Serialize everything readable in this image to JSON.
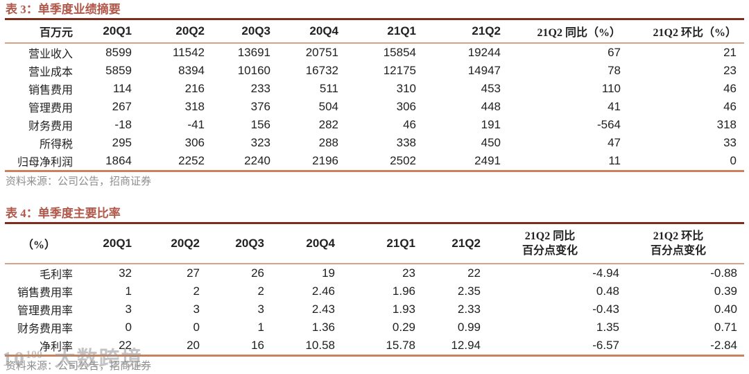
{
  "colors": {
    "title_red": "#b2584a",
    "dark_rule": "#7c2d1c",
    "header_rule": "#d9a184",
    "bottom_rule": "#c9815c",
    "source_gray": "#8e8e8e",
    "watermark_gray": "#919191"
  },
  "table3": {
    "title": "表 3：单季度业绩摘要",
    "columns": [
      "百万元",
      "20Q1",
      "20Q2",
      "20Q3",
      "20Q4",
      "21Q1",
      "21Q2",
      "21Q2 同比（%）",
      "21Q2 环比（%）"
    ],
    "rows": [
      {
        "label": "营业收入",
        "values": [
          "8599",
          "11542",
          "13691",
          "20751",
          "15854",
          "19244",
          "67",
          "21"
        ]
      },
      {
        "label": "营业成本",
        "values": [
          "5859",
          "8394",
          "10160",
          "16732",
          "12175",
          "14947",
          "78",
          "23"
        ]
      },
      {
        "label": "销售费用",
        "values": [
          "114",
          "216",
          "233",
          "511",
          "310",
          "453",
          "110",
          "46"
        ]
      },
      {
        "label": "管理费用",
        "values": [
          "267",
          "318",
          "376",
          "504",
          "306",
          "448",
          "41",
          "46"
        ]
      },
      {
        "label": "财务费用",
        "values": [
          "-18",
          "-41",
          "156",
          "282",
          "46",
          "191",
          "-564",
          "318"
        ]
      },
      {
        "label": "所得税",
        "values": [
          "295",
          "306",
          "323",
          "288",
          "338",
          "450",
          "47",
          "33"
        ]
      },
      {
        "label": "归母净利润",
        "values": [
          "1864",
          "2252",
          "2240",
          "2196",
          "2502",
          "2491",
          "11",
          "0"
        ]
      }
    ],
    "source": "资料来源：公司公告，招商证券"
  },
  "table4": {
    "title": "表 4：单季度主要比率",
    "columns": [
      "（%）",
      "20Q1",
      "20Q2",
      "20Q3",
      "20Q4",
      "21Q1",
      "21Q2"
    ],
    "yoy_header": {
      "line1": "21Q2 同比",
      "line2": "百分点变化"
    },
    "qoq_header": {
      "line1": "21Q2 环比",
      "line2": "百分点变化"
    },
    "rows": [
      {
        "label": "毛利率",
        "values": [
          "32",
          "27",
          "26",
          "19",
          "23",
          "22",
          "-4.94",
          "-0.88"
        ]
      },
      {
        "label": "销售费用率",
        "values": [
          "1",
          "2",
          "2",
          "2.46",
          "1.96",
          "2.35",
          "0.48",
          "0.39"
        ]
      },
      {
        "label": "管理费用率",
        "values": [
          "3",
          "3",
          "3",
          "2.43",
          "1.93",
          "2.33",
          "-0.43",
          "0.40"
        ]
      },
      {
        "label": "财务费用率",
        "values": [
          "0",
          "0",
          "1",
          "1.36",
          "0.29",
          "0.99",
          "1.35",
          "0.71"
        ]
      },
      {
        "label": "净利率",
        "values": [
          "22",
          "20",
          "16",
          "10.58",
          "15.78",
          "12.94",
          "-6.57",
          "-2.84"
        ]
      }
    ],
    "source": "资料来源：公司公告，招商证券"
  },
  "watermark": {
    "logo_base": "10",
    "logo_sup": "100",
    "text": "大数跨境"
  }
}
